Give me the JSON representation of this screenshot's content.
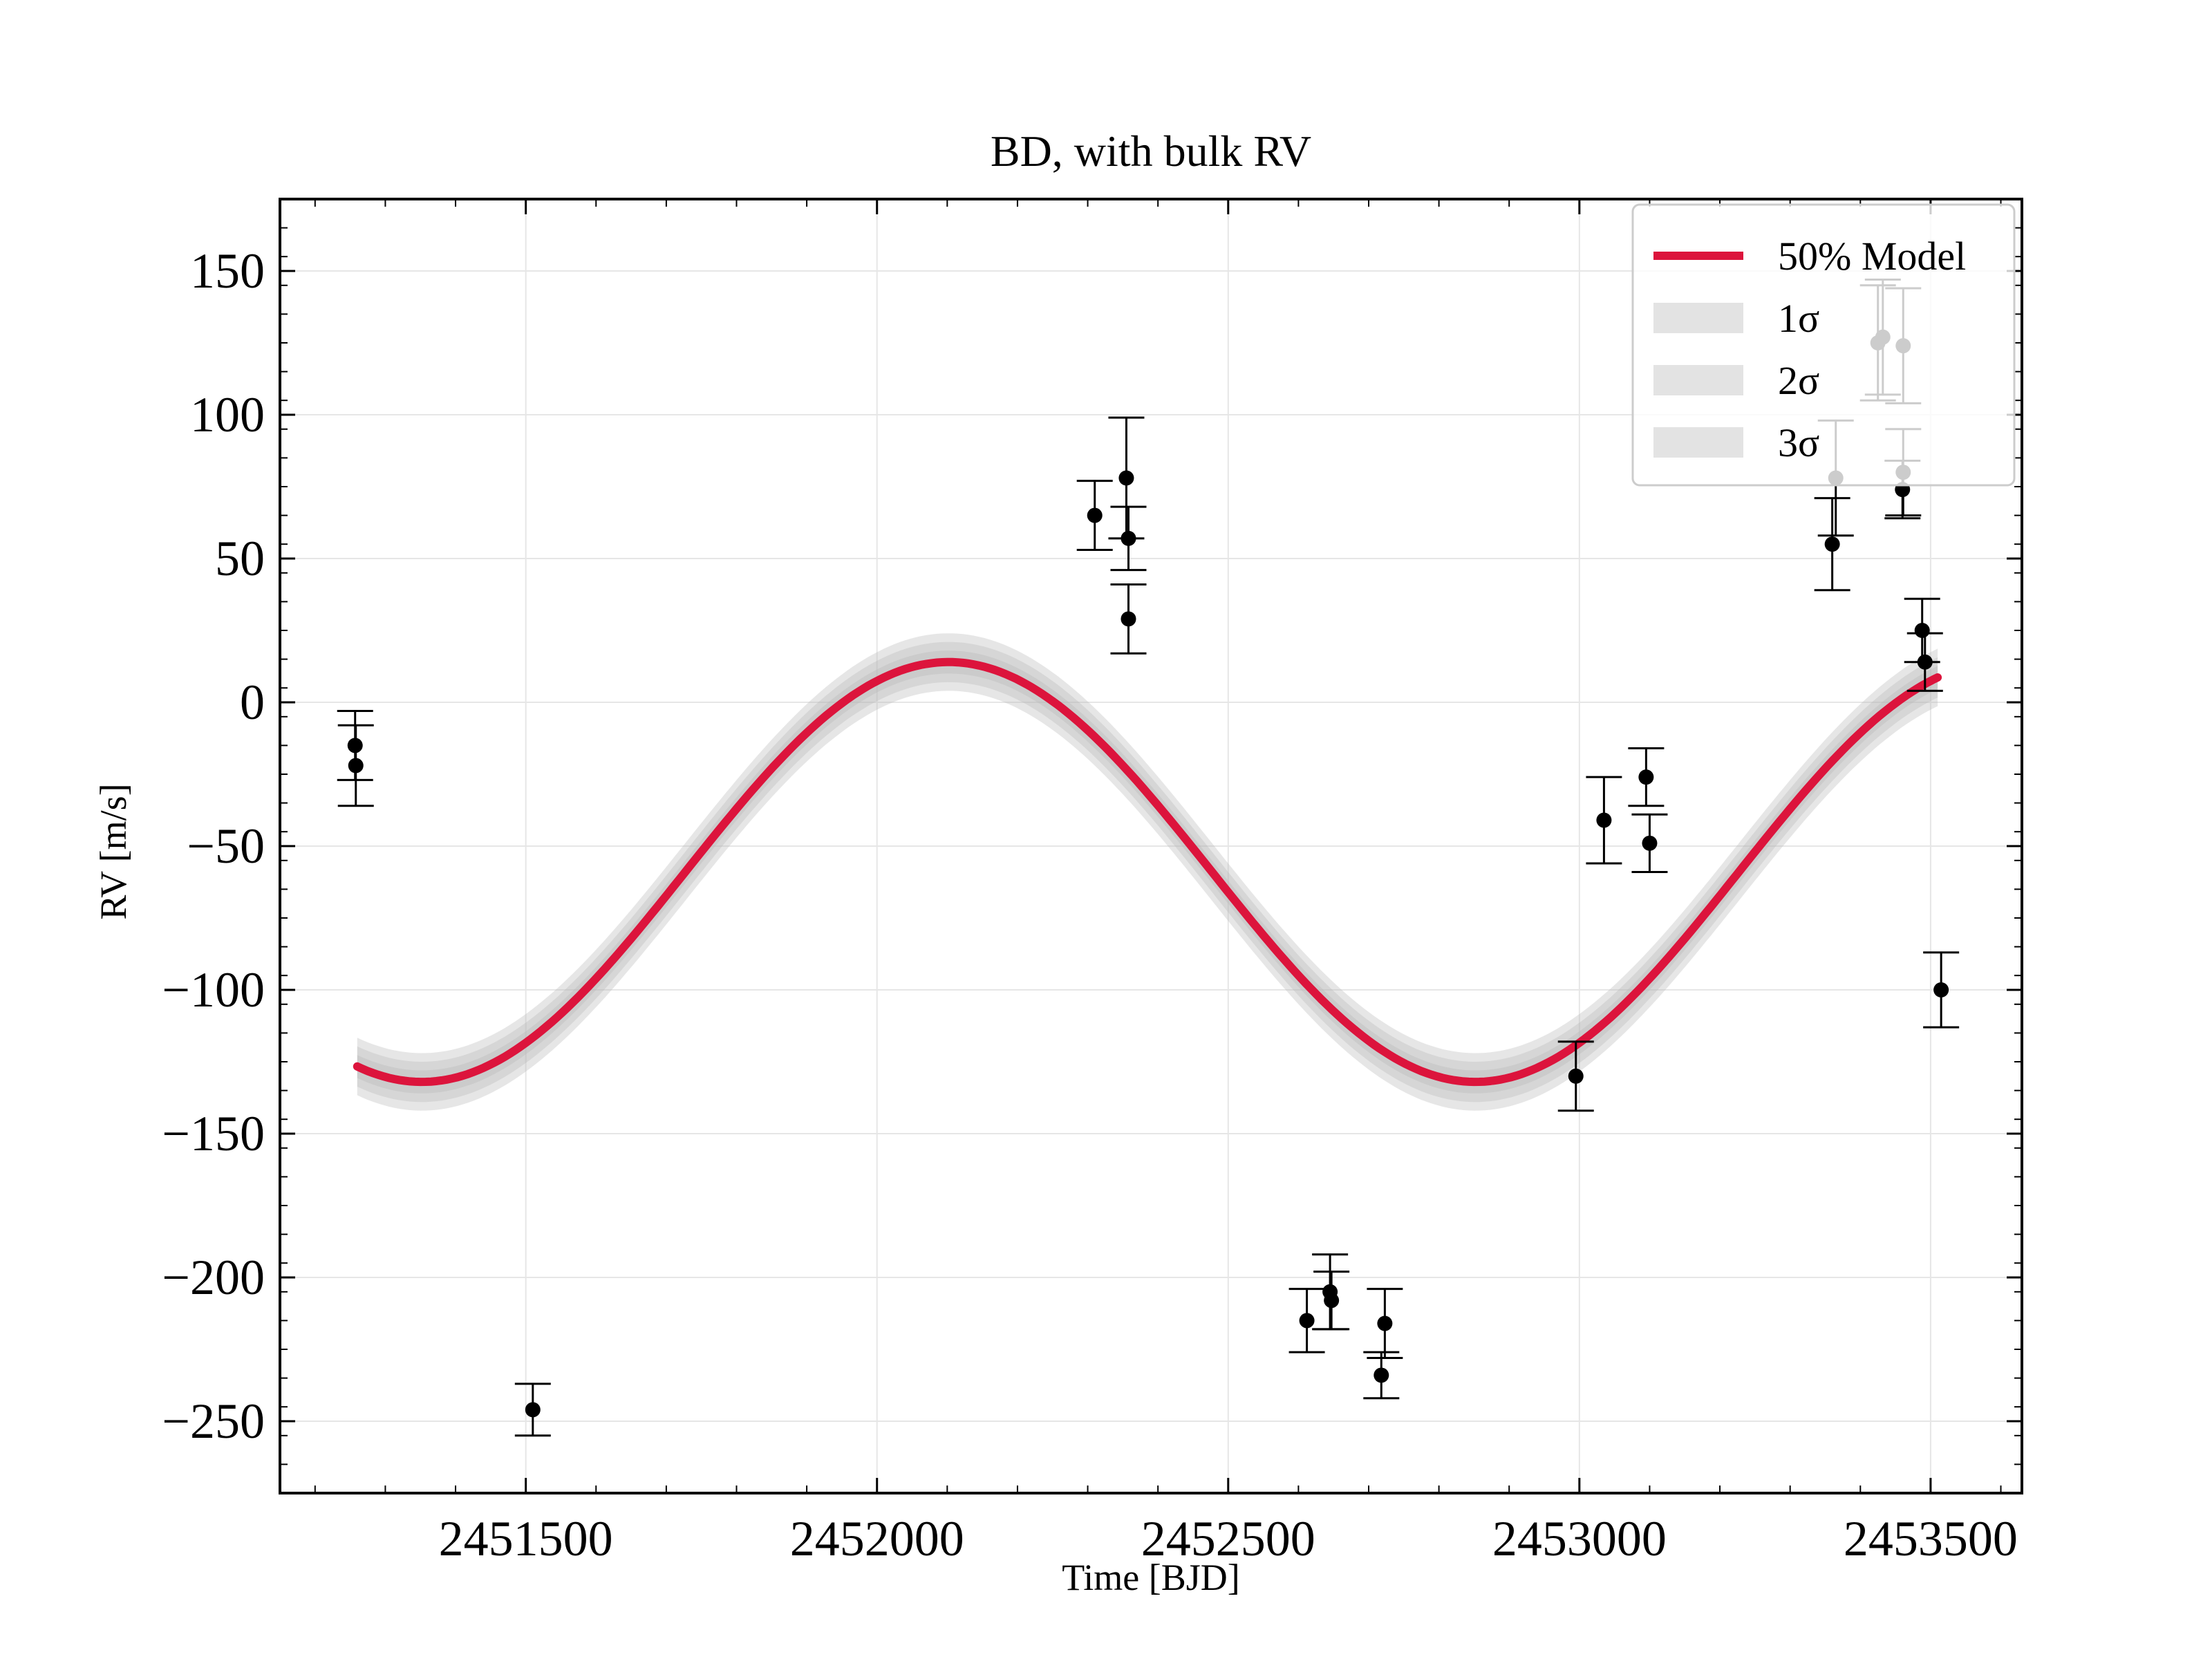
{
  "chart_data": {
    "type": "scatter",
    "title": "BD, with bulk RV",
    "xlabel": "Time [BJD]",
    "ylabel": "RV [m/s]",
    "xlim": [
      2451150,
      2453630
    ],
    "ylim": [
      -275,
      175
    ],
    "xticks": [
      2451500,
      2452000,
      2452500,
      2453000,
      2453500
    ],
    "xtick_labels": [
      "2451500",
      "2452000",
      "2452500",
      "2453000",
      "2453500"
    ],
    "yticks": [
      150,
      100,
      50,
      0,
      -50,
      -100,
      -150,
      -200,
      -250
    ],
    "ytick_labels": [
      "150",
      "100",
      "50",
      "0",
      "−50",
      "−100",
      "−150",
      "−200",
      "−250"
    ],
    "grid": true,
    "legend_position": "top-right",
    "legend": [
      {
        "label": "50% Model",
        "kind": "line"
      },
      {
        "label": "1σ",
        "kind": "band"
      },
      {
        "label": "2σ",
        "kind": "band"
      },
      {
        "label": "3σ",
        "kind": "band"
      }
    ],
    "model": {
      "name": "50% Model",
      "form": "sinusoid",
      "offset": -59,
      "amplitude": 73,
      "period": 1500,
      "t_peak": 2452102,
      "x_range": [
        2451260,
        2453510
      ],
      "sigma_widths": [
        4,
        7,
        10
      ],
      "color": "#dc143c"
    },
    "points": [
      {
        "t": 2451257,
        "rv": -15,
        "err": 12
      },
      {
        "t": 2451258,
        "rv": -22,
        "err": 14
      },
      {
        "t": 2451510,
        "rv": -246,
        "err": 9
      },
      {
        "t": 2452310,
        "rv": 65,
        "err": 12
      },
      {
        "t": 2452355,
        "rv": 78,
        "err": 21
      },
      {
        "t": 2452358,
        "rv": 57,
        "err": 11
      },
      {
        "t": 2452358,
        "rv": 29,
        "err": 12
      },
      {
        "t": 2452612,
        "rv": -215,
        "err": 11
      },
      {
        "t": 2452645,
        "rv": -205,
        "err": 13
      },
      {
        "t": 2452647,
        "rv": -208,
        "err": 10
      },
      {
        "t": 2452718,
        "rv": -234,
        "err": 8
      },
      {
        "t": 2452723,
        "rv": -216,
        "err": 12
      },
      {
        "t": 2452995,
        "rv": -130,
        "err": 12
      },
      {
        "t": 2453035,
        "rv": -41,
        "err": 15
      },
      {
        "t": 2453095,
        "rv": -26,
        "err": 10
      },
      {
        "t": 2453100,
        "rv": -49,
        "err": 10
      },
      {
        "t": 2453360,
        "rv": 55,
        "err": 16
      },
      {
        "t": 2453365,
        "rv": 78,
        "err": 20
      },
      {
        "t": 2453425,
        "rv": 125,
        "err": 20
      },
      {
        "t": 2453432,
        "rv": 127,
        "err": 20
      },
      {
        "t": 2453460,
        "rv": 74,
        "err": 10
      },
      {
        "t": 2453461,
        "rv": 124,
        "err": 20
      },
      {
        "t": 2453461,
        "rv": 80,
        "err": 15
      },
      {
        "t": 2453488,
        "rv": 25,
        "err": 11
      },
      {
        "t": 2453492,
        "rv": 14,
        "err": 10
      },
      {
        "t": 2453515,
        "rv": -100,
        "err": 13
      }
    ],
    "colors": {
      "model": "#dc143c",
      "points": "#000000",
      "band": "#b8b8b8",
      "grid": "#e6e6e6",
      "axis": "#000000"
    }
  }
}
